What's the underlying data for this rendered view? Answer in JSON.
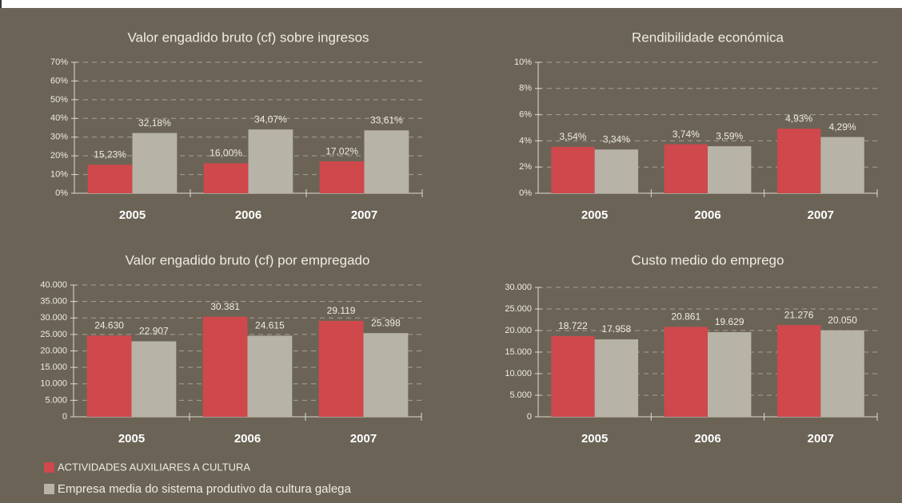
{
  "legend": [
    {
      "name": "ACTIVIDADES AUXILIARES A CULTURA",
      "color": "#cf484c"
    },
    {
      "name": "Empresa media do sistema produtivo da cultura galega",
      "color": "#b7b3a6"
    }
  ],
  "chart_data": [
    {
      "type": "bar",
      "title": "Valor engadido bruto (cf) sobre ingresos",
      "categories": [
        "2005",
        "2006",
        "2007"
      ],
      "series": [
        {
          "values": [
            15.23,
            16.0,
            17.02
          ],
          "value_labels": [
            "15,23%",
            "16,00%",
            "17,02%"
          ]
        },
        {
          "values": [
            32.18,
            34.07,
            33.61
          ],
          "value_labels": [
            "32,18%",
            "34,07%",
            "33,61%"
          ]
        }
      ],
      "ylim": [
        0,
        70
      ],
      "yticks": [
        {
          "value": 0,
          "label": "0%"
        },
        {
          "value": 10,
          "label": "10%"
        },
        {
          "value": 20,
          "label": "20%"
        },
        {
          "value": 30,
          "label": "30%"
        },
        {
          "value": 40,
          "label": "40%"
        },
        {
          "value": 50,
          "label": "50%"
        },
        {
          "value": 60,
          "label": "60%"
        },
        {
          "value": 70,
          "label": "70%"
        }
      ],
      "grid": true
    },
    {
      "type": "bar",
      "title": "Rendibilidade económica",
      "categories": [
        "2005",
        "2006",
        "2007"
      ],
      "series": [
        {
          "values": [
            3.54,
            3.74,
            4.93
          ],
          "value_labels": [
            "3,54%",
            "3,74%",
            "4,93%"
          ]
        },
        {
          "values": [
            3.34,
            3.59,
            4.29
          ],
          "value_labels": [
            "3,34%",
            "3,59%",
            "4,29%"
          ]
        }
      ],
      "ylim": [
        0,
        10
      ],
      "yticks": [
        {
          "value": 0,
          "label": "0%"
        },
        {
          "value": 2,
          "label": "2%"
        },
        {
          "value": 4,
          "label": "4%"
        },
        {
          "value": 6,
          "label": "6%"
        },
        {
          "value": 8,
          "label": "8%"
        },
        {
          "value": 10,
          "label": "10%"
        }
      ],
      "grid": true
    },
    {
      "type": "bar",
      "title": "Valor engadido bruto (cf) por empregado",
      "categories": [
        "2005",
        "2006",
        "2007"
      ],
      "series": [
        {
          "values": [
            24630,
            30381,
            29119
          ],
          "value_labels": [
            "24.630",
            "30.381",
            "29.119"
          ]
        },
        {
          "values": [
            22907,
            24615,
            25398
          ],
          "value_labels": [
            "22.907",
            "24.615",
            "25.398"
          ]
        }
      ],
      "ylim": [
        0,
        40000
      ],
      "yticks": [
        0,
        {
          "value": 5000,
          "label": "5.000"
        },
        {
          "value": 10000,
          "label": "10.000"
        },
        {
          "value": 15000,
          "label": "15.000"
        },
        {
          "value": 20000,
          "label": "20.000"
        },
        {
          "value": 25000,
          "label": "25.000"
        },
        {
          "value": 30000,
          "label": "30.000"
        },
        {
          "value": 35000,
          "label": "35.000"
        },
        {
          "value": 40000,
          "label": "40.000"
        }
      ],
      "grid": true
    },
    {
      "type": "bar",
      "title": "Custo medio do emprego",
      "categories": [
        "2005",
        "2006",
        "2007"
      ],
      "series": [
        {
          "values": [
            18722,
            20861,
            21276
          ],
          "value_labels": [
            "18.722",
            "20.861",
            "21.276"
          ]
        },
        {
          "values": [
            17958,
            19629,
            20050
          ],
          "value_labels": [
            "17.958",
            "19.629",
            "20.050"
          ]
        }
      ],
      "ylim": [
        0,
        30000
      ],
      "yticks": [
        0,
        {
          "value": 5000,
          "label": "5.000"
        },
        {
          "value": 10000,
          "label": "10.000"
        },
        {
          "value": 15000,
          "label": "15.000"
        },
        {
          "value": 20000,
          "label": "20.000"
        },
        {
          "value": 25000,
          "label": "25.000"
        },
        {
          "value": 30000,
          "label": "30.000"
        }
      ],
      "grid": true
    }
  ]
}
